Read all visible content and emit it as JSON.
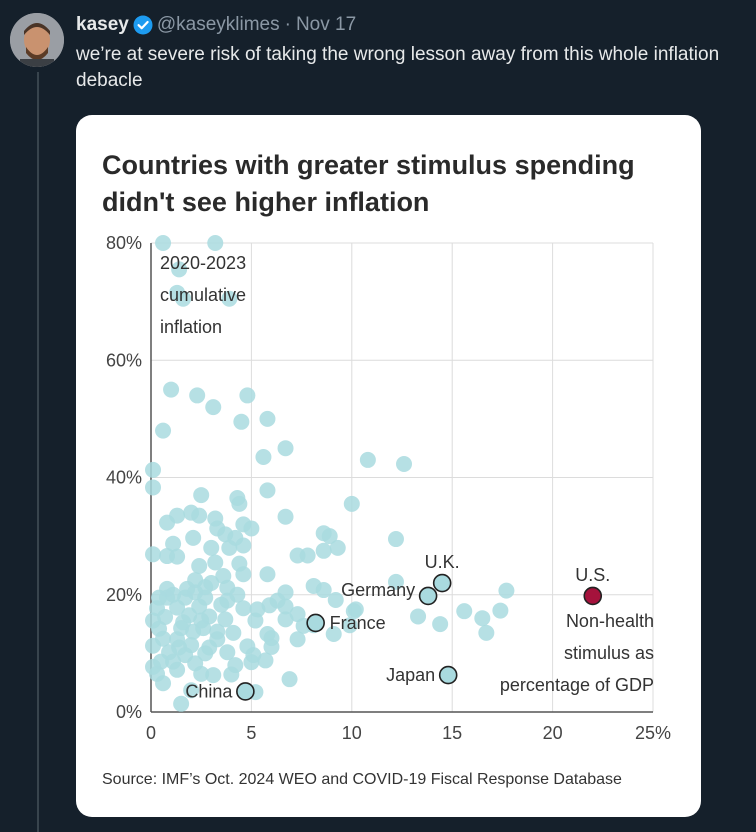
{
  "tweet": {
    "author_name": "kasey",
    "handle": "@kaseyklimes",
    "separator": "·",
    "date": "Nov 17",
    "text": "we’re at severe risk of taking the wrong lesson away from this whole inflation debacle"
  },
  "icons": {
    "verified": "verified-badge-icon",
    "avatar": "avatar-photo"
  },
  "colors": {
    "background": "#15202b",
    "verified": "#1d9bf0",
    "dot": "#a9dadf",
    "highlight_dot": "#a9dadf",
    "us_dot": "#a5123c"
  },
  "chart_data": {
    "type": "scatter",
    "title": "Countries with greater stimulus spending didn't see higher inflation",
    "y_annotation": [
      "2020-2023",
      "cumulative",
      "inflation"
    ],
    "x_annotation": [
      "Non-health",
      "stimulus as",
      "percentage of GDP"
    ],
    "xlim": [
      0,
      25
    ],
    "ylim": [
      0,
      80
    ],
    "x_ticks": [
      "0",
      "5",
      "10",
      "15",
      "20",
      "25%"
    ],
    "y_ticks": [
      "0%",
      "20%",
      "40%",
      "60%",
      "80%"
    ],
    "grid": true,
    "source": "Source: IMF’s Oct. 2024 WEO and COVID-19 Fiscal Response Database",
    "labeled_points": [
      {
        "label": "China",
        "x": 4.7,
        "y": 3.5
      },
      {
        "label": "France",
        "x": 8.2,
        "y": 15.2
      },
      {
        "label": "Germany",
        "x": 13.8,
        "y": 19.8
      },
      {
        "label": "U.K.",
        "x": 14.5,
        "y": 22.0
      },
      {
        "label": "Japan",
        "x": 14.8,
        "y": 6.3
      },
      {
        "label": "U.S.",
        "x": 22.0,
        "y": 19.8
      }
    ],
    "points": [
      [
        0.6,
        80
      ],
      [
        3.2,
        80
      ],
      [
        1.4,
        75.5
      ],
      [
        1.3,
        71.5
      ],
      [
        1.6,
        70.5
      ],
      [
        3.9,
        70.5
      ],
      [
        1,
        55
      ],
      [
        2.3,
        54
      ],
      [
        4.8,
        54
      ],
      [
        3.1,
        52
      ],
      [
        5.8,
        50
      ],
      [
        4.5,
        49.5
      ],
      [
        0.6,
        48
      ],
      [
        5.6,
        43.5
      ],
      [
        6.7,
        45
      ],
      [
        10.8,
        43
      ],
      [
        12.6,
        42.3
      ],
      [
        0.1,
        41.3
      ],
      [
        0.1,
        38.3
      ],
      [
        5.8,
        37.8
      ],
      [
        2.5,
        37
      ],
      [
        4.3,
        36.5
      ],
      [
        10,
        35.5
      ],
      [
        4.4,
        35.5
      ],
      [
        2,
        34
      ],
      [
        1.3,
        33.5
      ],
      [
        2.4,
        33.5
      ],
      [
        3.2,
        33
      ],
      [
        4.6,
        32
      ],
      [
        6.7,
        33.3
      ],
      [
        0.8,
        32.3
      ],
      [
        3.3,
        31.3
      ],
      [
        5,
        31.3
      ],
      [
        3.7,
        30.3
      ],
      [
        8.9,
        30
      ],
      [
        2.1,
        29.7
      ],
      [
        4.2,
        29.7
      ],
      [
        8.6,
        30.5
      ],
      [
        12.2,
        29.5
      ],
      [
        1.1,
        28.7
      ],
      [
        3,
        28
      ],
      [
        3.9,
        28
      ],
      [
        4.6,
        28.4
      ],
      [
        0.8,
        26.6
      ],
      [
        9.3,
        28
      ],
      [
        8.6,
        27.5
      ],
      [
        7.3,
        26.7
      ],
      [
        7.8,
        26.7
      ],
      [
        0.1,
        26.9
      ],
      [
        1.3,
        26.5
      ],
      [
        3.2,
        25.5
      ],
      [
        4.4,
        25.3
      ],
      [
        2.4,
        24.9
      ],
      [
        5.8,
        23.5
      ],
      [
        3.6,
        23.2
      ],
      [
        12.2,
        22.2
      ],
      [
        3,
        22
      ],
      [
        4.6,
        23.5
      ],
      [
        2.2,
        22.5
      ],
      [
        0.8,
        21
      ],
      [
        1.8,
        21
      ],
      [
        2.7,
        21.3
      ],
      [
        3.8,
        21.2
      ],
      [
        1.1,
        20
      ],
      [
        2.2,
        20.4
      ],
      [
        4.3,
        20
      ],
      [
        6.7,
        20.4
      ],
      [
        8.1,
        21.5
      ],
      [
        8.6,
        20.8
      ],
      [
        0.4,
        19.5
      ],
      [
        0.8,
        19.5
      ],
      [
        1.7,
        19.5
      ],
      [
        2.7,
        19.5
      ],
      [
        3.8,
        19
      ],
      [
        6.3,
        19
      ],
      [
        9.2,
        19.1
      ],
      [
        0.3,
        17.7
      ],
      [
        1.3,
        17.8
      ],
      [
        2.4,
        18
      ],
      [
        3.5,
        18.3
      ],
      [
        5.3,
        17.5
      ],
      [
        6.7,
        18
      ],
      [
        5.9,
        18.2
      ],
      [
        10.1,
        17.2
      ],
      [
        15.6,
        17.2
      ],
      [
        17.7,
        20.7
      ],
      [
        17.4,
        17.3
      ],
      [
        10.2,
        17.5
      ],
      [
        0.7,
        16.2
      ],
      [
        1.9,
        16.5
      ],
      [
        2.9,
        16.3
      ],
      [
        4.6,
        17.7
      ],
      [
        7.3,
        16.7
      ],
      [
        0.1,
        15.6
      ],
      [
        1.6,
        15.3
      ],
      [
        2.5,
        15.6
      ],
      [
        3.7,
        15.8
      ],
      [
        5.2,
        15.6
      ],
      [
        6.7,
        15.8
      ],
      [
        8.1,
        14.8
      ],
      [
        13.3,
        16.3
      ],
      [
        16.5,
        16
      ],
      [
        0.4,
        14.2
      ],
      [
        1.5,
        14.3
      ],
      [
        2.1,
        13.7
      ],
      [
        2.6,
        14.3
      ],
      [
        3.3,
        13.7
      ],
      [
        5.8,
        13.3
      ],
      [
        7.6,
        14.7
      ],
      [
        9.9,
        14.8
      ],
      [
        14.4,
        15
      ],
      [
        16.7,
        13.5
      ],
      [
        0.6,
        12.5
      ],
      [
        1.3,
        12.4
      ],
      [
        3.3,
        12.4
      ],
      [
        4.1,
        13.5
      ],
      [
        6,
        12.6
      ],
      [
        7.3,
        12.4
      ],
      [
        9.1,
        13.3
      ],
      [
        0.1,
        11.3
      ],
      [
        1.4,
        11
      ],
      [
        2,
        11.4
      ],
      [
        2.9,
        11
      ],
      [
        4.8,
        11.2
      ],
      [
        6,
        11.1
      ],
      [
        0.9,
        10.2
      ],
      [
        1.7,
        9.7
      ],
      [
        2.7,
        10
      ],
      [
        3.8,
        10.2
      ],
      [
        5.1,
        9.7
      ],
      [
        0.5,
        8.6
      ],
      [
        1.1,
        8.6
      ],
      [
        2.2,
        8.3
      ],
      [
        4.2,
        8
      ],
      [
        5,
        8.5
      ],
      [
        5.7,
        8.8
      ],
      [
        0.1,
        7.7
      ],
      [
        1.3,
        7.2
      ],
      [
        2.5,
        6.5
      ],
      [
        3.1,
        6.3
      ],
      [
        4,
        6.4
      ],
      [
        0.3,
        6.5
      ],
      [
        6.9,
        5.6
      ],
      [
        0.6,
        4.9
      ],
      [
        2,
        3.7
      ],
      [
        5.2,
        3.4
      ],
      [
        1.5,
        1.4
      ]
    ]
  }
}
